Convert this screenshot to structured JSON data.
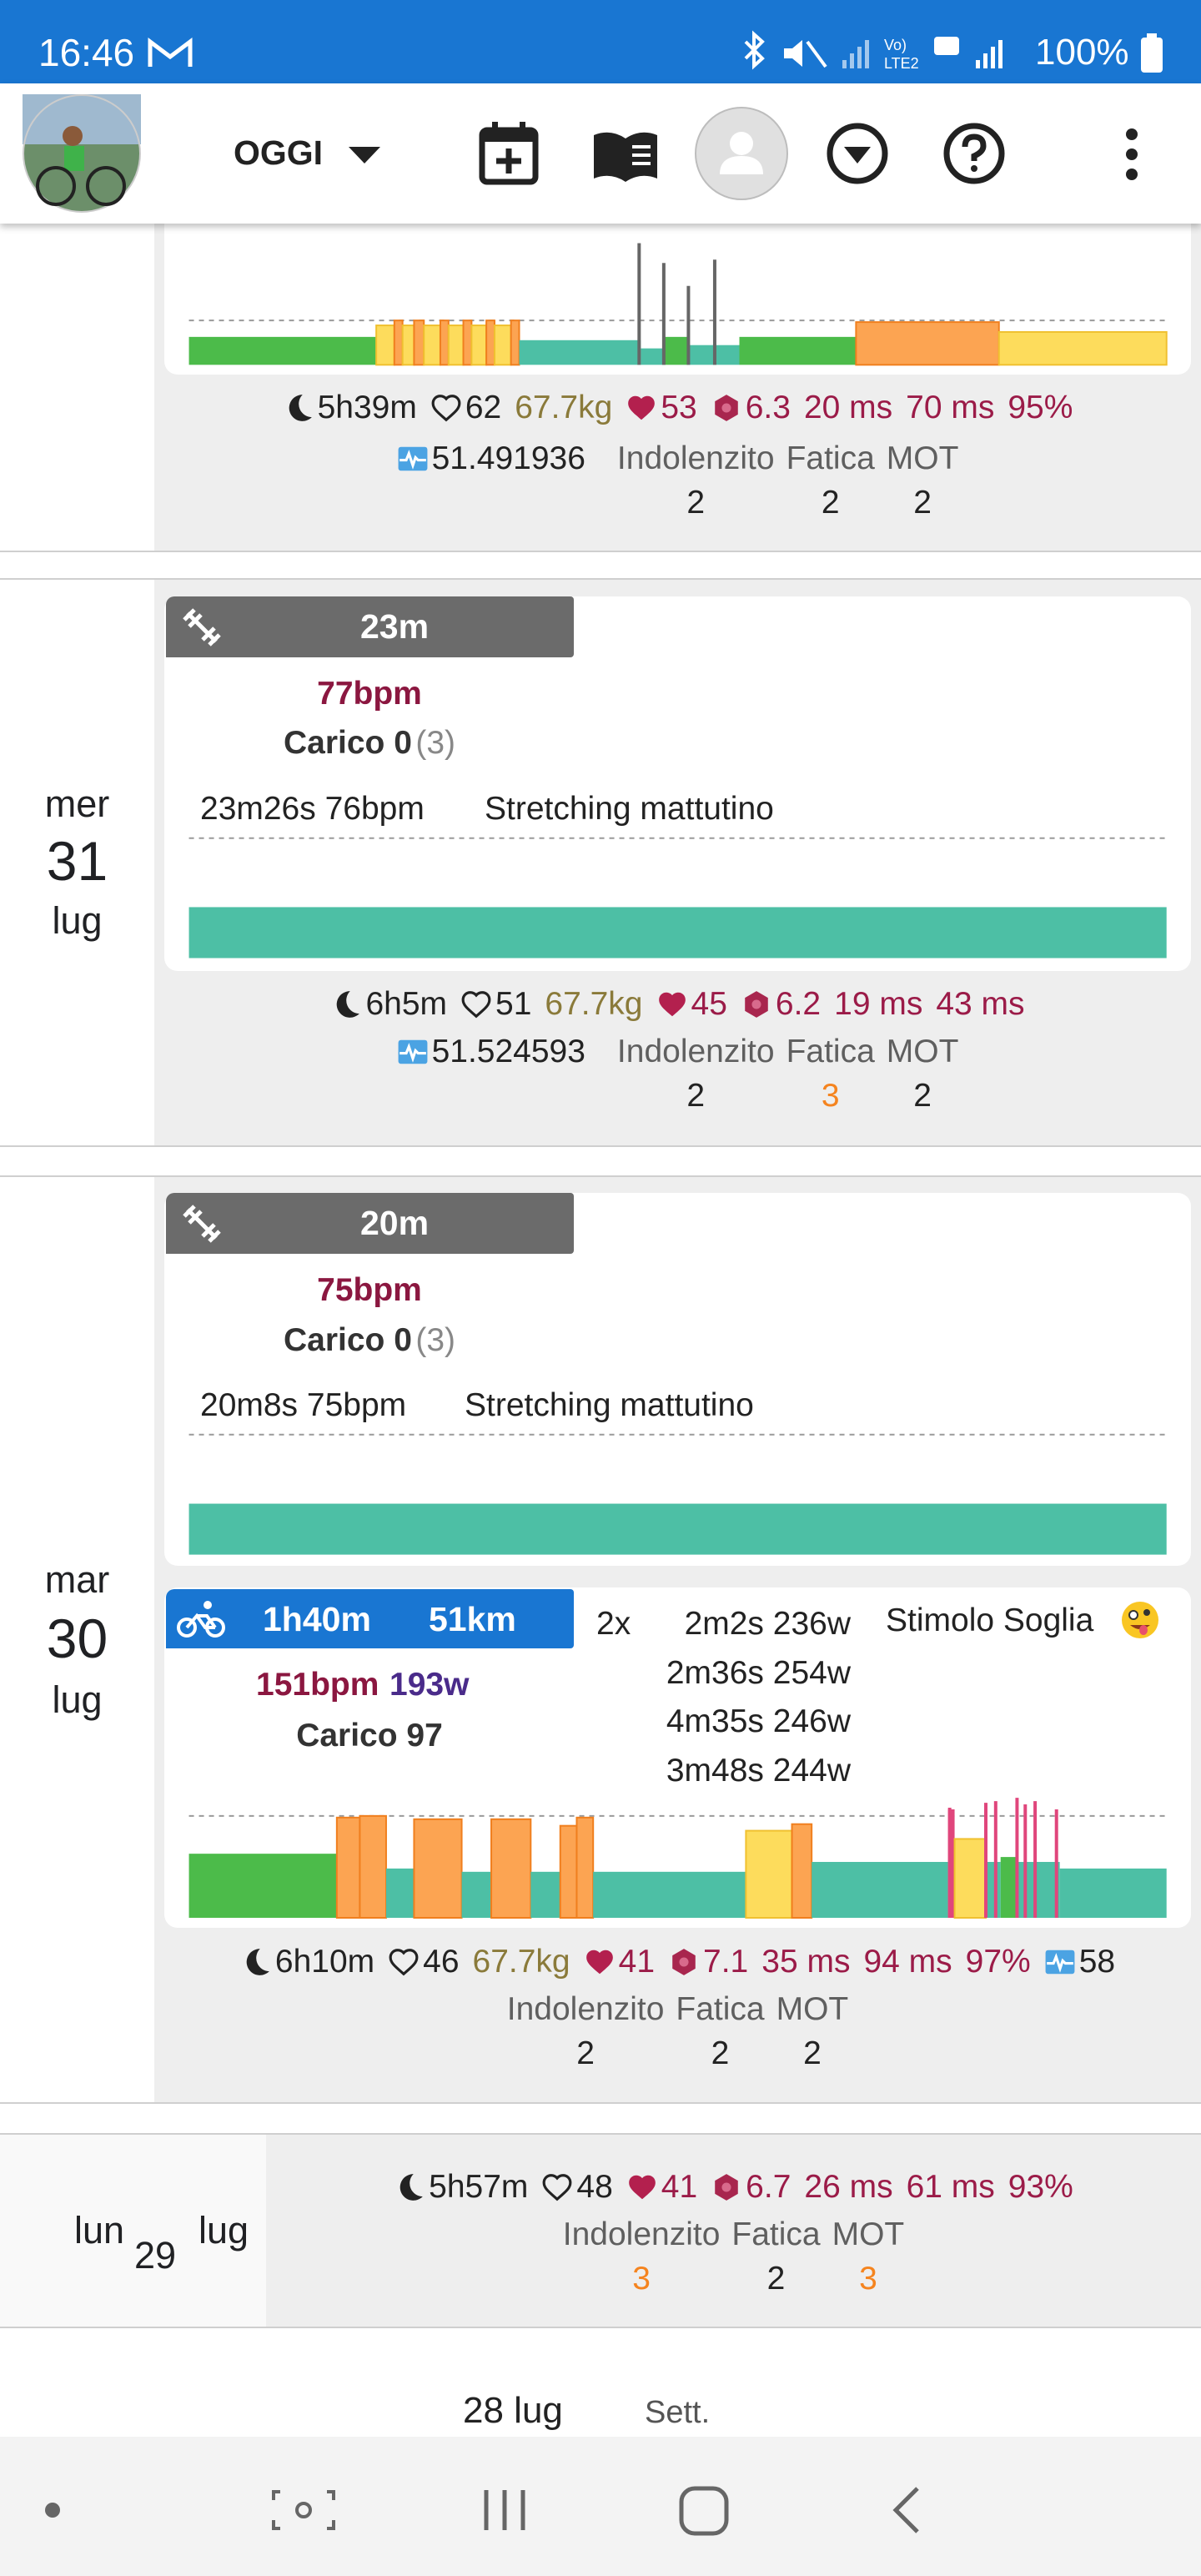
{
  "status_bar": {
    "time": "16:46",
    "battery": "100%"
  },
  "app_bar": {
    "view": "OGGI"
  },
  "days": [
    {
      "summary": {
        "sleep": "5h39m",
        "resting_hr": "62",
        "weight": "67.7kg",
        "hr": "53",
        "stress": "6.3",
        "hrv_low": "20 ms",
        "hrv_high": "70 ms",
        "spo2": "95%"
      },
      "details": {
        "variability": "51.491936",
        "feelings": [
          {
            "label": "Indolenzito",
            "value": 2
          },
          {
            "label": "Fatica",
            "value": 2
          },
          {
            "label": "MOT",
            "value": 2
          }
        ]
      }
    },
    {
      "weekday": "mer",
      "day": 31,
      "month": "lug",
      "workouts": [
        {
          "duration": "23m",
          "hr": "77bpm",
          "load": "Carico 0",
          "load_note": "(3)",
          "lap": "23m26s 76bpm",
          "name": "Stretching mattutino"
        }
      ],
      "summary": {
        "sleep": "6h5m",
        "resting_hr": "51",
        "weight": "67.7kg",
        "hr": "45",
        "stress": "6.2",
        "hrv_low": "19 ms",
        "hrv_high": "43 ms"
      },
      "details": {
        "variability": "51.524593",
        "feelings": [
          {
            "label": "Indolenzito",
            "value": 2
          },
          {
            "label": "Fatica",
            "value": 3,
            "color": "#f5841f"
          },
          {
            "label": "MOT",
            "value": 2
          }
        ]
      }
    },
    {
      "weekday": "mar",
      "day": 30,
      "month": "lug",
      "workouts": [
        {
          "duration": "20m",
          "hr": "75bpm",
          "load": "Carico 0",
          "load_note": "(3)",
          "lap": "20m8s 75bpm",
          "name": "Stretching mattutino"
        },
        {
          "duration": "1h40m",
          "distance": "51km",
          "hr": "151bpm",
          "power": "193w",
          "load": "Carico 97",
          "reps": "2x",
          "intervals": [
            "2m2s 236w",
            "2m36s 254w",
            "4m35s 246w",
            "3m48s 244w"
          ],
          "name": "Stimolo Soglia"
        }
      ],
      "summary": {
        "sleep": "6h10m",
        "resting_hr": "46",
        "weight": "67.7kg",
        "hr": "41",
        "stress": "7.1",
        "hrv_low": "35 ms",
        "hrv_high": "94 ms",
        "spo2": "97%",
        "variability": "58"
      },
      "details": {
        "feelings": [
          {
            "label": "Indolenzito",
            "value": 2
          },
          {
            "label": "Fatica",
            "value": 2
          },
          {
            "label": "MOT",
            "value": 2
          }
        ]
      }
    },
    {
      "weekday": "lun",
      "day": 29,
      "month": "lug",
      "summary": {
        "sleep": "5h57m",
        "resting_hr": "48",
        "hr": "41",
        "stress": "6.7",
        "hrv_low": "26 ms",
        "hrv_high": "61 ms",
        "spo2": "93%"
      },
      "details": {
        "feelings": [
          {
            "label": "Indolenzito",
            "value": 3,
            "color": "#f5841f"
          },
          {
            "label": "Fatica",
            "value": 2
          },
          {
            "label": "MOT",
            "value": 3,
            "color": "#f5841f"
          }
        ]
      }
    }
  ],
  "footer": {
    "week_date": "28 lug",
    "week_label": "Sett."
  }
}
